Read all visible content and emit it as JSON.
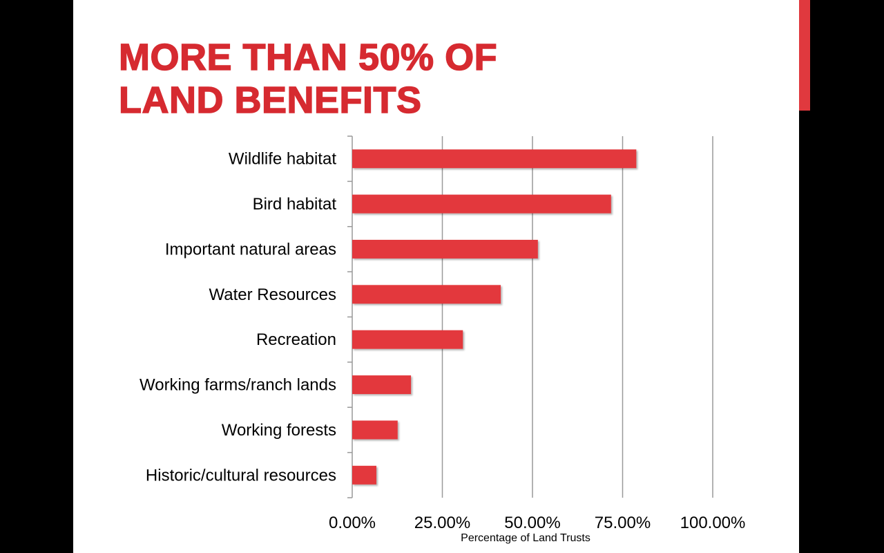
{
  "slide": {
    "title_lines": [
      "MORE THAN 50% OF",
      "LAND BENEFITS"
    ]
  },
  "colors": {
    "bar": "#e3393e",
    "title": "#d62a30",
    "accent": "#e0393e",
    "grid": "#999999"
  },
  "chart_data": {
    "type": "bar",
    "orientation": "horizontal",
    "title": "MORE THAN 50% OF LAND BENEFITS",
    "categories": [
      "Wildlife habitat",
      "Bird habitat",
      "Important natural areas",
      "Water Resources",
      "Recreation",
      "Working farms/ranch lands",
      "Working forests",
      "Historic/cultural resources"
    ],
    "values": [
      78.8,
      71.8,
      51.5,
      41.2,
      30.7,
      16.3,
      12.6,
      6.7
    ],
    "xlabel": "Percentage of Land Trusts",
    "ylabel": "",
    "xlim": [
      0,
      100
    ],
    "xticks": [
      0,
      25,
      50,
      75,
      100
    ],
    "xtick_labels": [
      "0.00%",
      "25.00%",
      "50.00%",
      "75.00%",
      "100.00%"
    ],
    "grid": true,
    "legend": "none"
  }
}
